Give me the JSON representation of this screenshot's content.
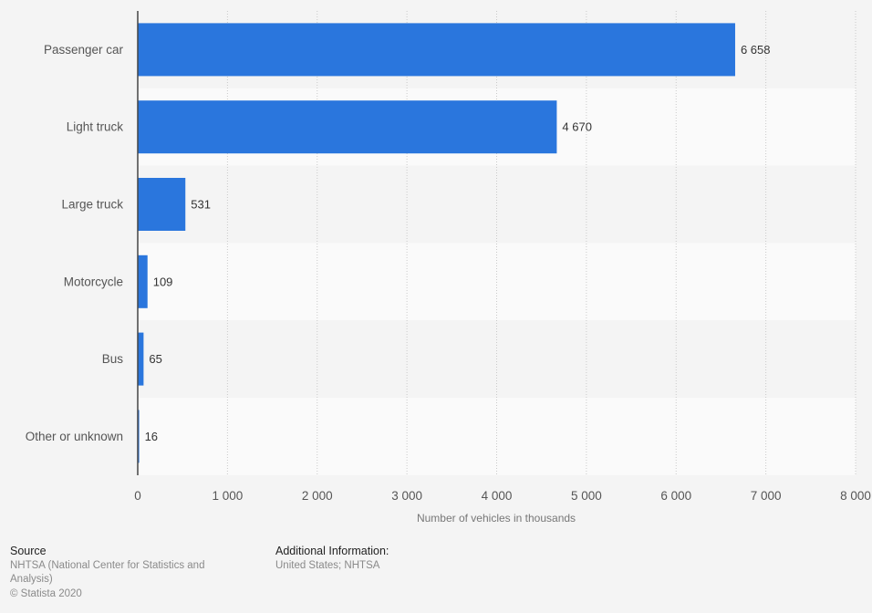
{
  "chart_data": {
    "type": "bar",
    "orientation": "horizontal",
    "categories": [
      "Passenger car",
      "Light truck",
      "Large truck",
      "Motorcycle",
      "Bus",
      "Other or unknown"
    ],
    "values": [
      6658,
      4670,
      531,
      109,
      65,
      16
    ],
    "value_labels": [
      "6 658",
      "4 670",
      "531",
      "109",
      "65",
      "16"
    ],
    "xlabel": "Number of vehicles in thousands",
    "xlim": [
      0,
      8000
    ],
    "xticks": [
      0,
      1000,
      2000,
      3000,
      4000,
      5000,
      6000,
      7000,
      8000
    ],
    "xtick_labels": [
      "0",
      "1 000",
      "2 000",
      "3 000",
      "4 000",
      "5 000",
      "6 000",
      "7 000",
      "8 000"
    ],
    "grid": "vertical dotted",
    "bar_color": "#2a76dd"
  },
  "footer": {
    "source_heading": "Source",
    "source_lines": [
      "NHTSA (National Center for Statistics and",
      "Analysis)",
      "© Statista 2020"
    ],
    "info_heading": "Additional Information:",
    "info_text": "United States; NHTSA"
  }
}
